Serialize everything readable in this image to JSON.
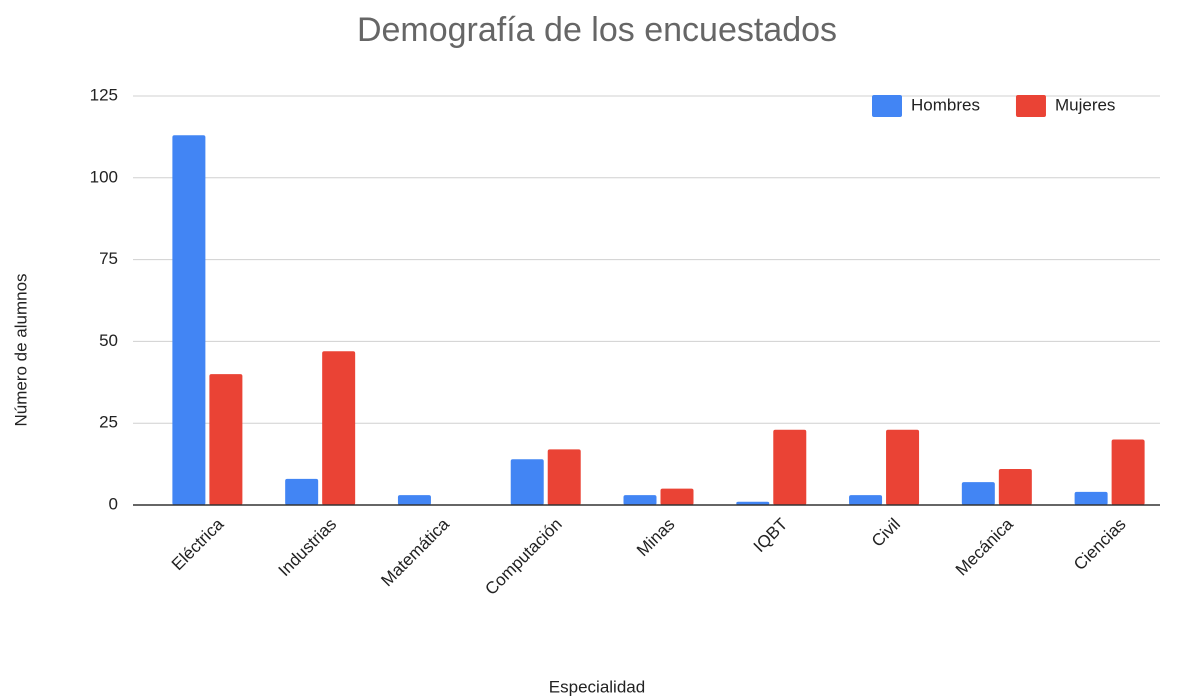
{
  "chart_data": {
    "type": "bar",
    "title": "Demografía de los encuestados",
    "x_label": "Especialidad",
    "y_label": "Número de alumnos",
    "categories": [
      "Eléctrica",
      "Industrias",
      "Matemática",
      "Computación",
      "Minas",
      "IQBT",
      "Civil",
      "Mecánica",
      "Ciencias"
    ],
    "series": [
      {
        "name": "Hombres",
        "color": "#4285f4",
        "values": [
          113,
          8,
          3,
          14,
          3,
          1,
          3,
          7,
          4
        ]
      },
      {
        "name": "Mujeres",
        "color": "#ea4335",
        "values": [
          40,
          47,
          0,
          17,
          5,
          23,
          23,
          11,
          20
        ]
      }
    ],
    "ylim": [
      0,
      125
    ],
    "yticks": [
      0,
      25,
      50,
      75,
      100,
      125
    ],
    "grid": true,
    "legend": "top-right"
  }
}
